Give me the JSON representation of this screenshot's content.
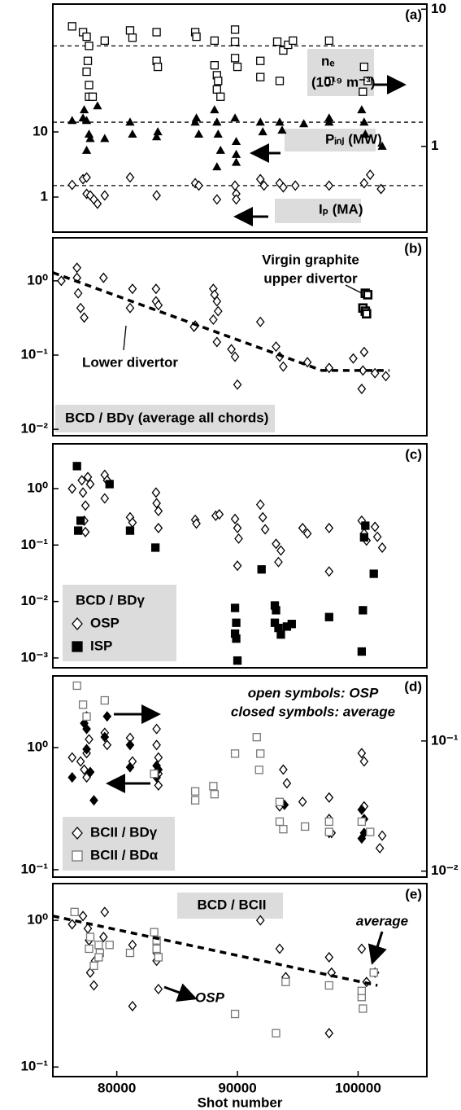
{
  "chart_data": [
    {
      "type": "scatter",
      "label": "(a)",
      "ylog": true,
      "xlim": [
        74700,
        105700
      ],
      "ylim": [
        0.29,
        917
      ],
      "yticks": [
        1,
        10
      ],
      "y2lim": [
        0.237,
        10.9
      ],
      "y2ticks": [
        1,
        10
      ],
      "reference_lines": [
        {
          "value": 5.4,
          "axis": "y2"
        },
        {
          "value": 14.1,
          "axis": "y"
        },
        {
          "value": 1.5,
          "axis": "y"
        }
      ],
      "annotations": [
        "nₑ",
        "(10¹⁹ m⁻³)",
        "Pᵢₙⱼ (MW)",
        "Iₚ (MA)"
      ],
      "series": [
        {
          "marker": "square",
          "filled": false,
          "color": "#000000",
          "axis": "y2",
          "x": [
            76300,
            77200,
            77500,
            77700,
            77600,
            77500,
            77700,
            77700,
            78000,
            79000,
            81100,
            81300,
            83300,
            83300,
            83400,
            86500,
            86600,
            88100,
            88100,
            88300,
            88400,
            88300,
            88600,
            89800,
            89800,
            89800,
            90000,
            91900,
            91900,
            93300,
            93500,
            93800,
            94200,
            94600,
            97600,
            97600,
            100500,
            100800,
            100400
          ],
          "values": [
            7.5,
            6.8,
            6.3,
            5.4,
            4.2,
            3.5,
            2.8,
            2.3,
            2.3,
            5.9,
            7.0,
            6.2,
            6.8,
            4.2,
            3.8,
            6.8,
            6.3,
            5.9,
            3.9,
            3.3,
            3.0,
            2.6,
            2.3,
            7.1,
            5.8,
            4.4,
            3.8,
            4.2,
            3.2,
            5.8,
            3.0,
            5.0,
            5.5,
            5.9,
            5.9,
            3.0,
            3.8,
            3.0,
            2.5
          ]
        },
        {
          "marker": "triangle",
          "filled": true,
          "color": "#000000",
          "axis": "y",
          "x": [
            76300,
            77200,
            77300,
            77500,
            77700,
            77800,
            77500,
            78400,
            79000,
            81100,
            81300,
            83300,
            83400,
            86500,
            86600,
            86800,
            88100,
            88300,
            88400,
            88600,
            88300,
            89800,
            89900,
            89900,
            89900,
            91900,
            92100,
            93500,
            93700,
            95500,
            97600,
            97600,
            100300,
            100500,
            100600,
            102000
          ],
          "values": [
            14.9,
            16.3,
            21.8,
            14.9,
            9.2,
            7.9,
            5.2,
            25,
            7.9,
            14.1,
            9.2,
            8.4,
            10,
            14.1,
            16.3,
            9.2,
            21.8,
            14.1,
            9.2,
            5.2,
            2.9,
            16.3,
            7.1,
            4.5,
            3.4,
            14.1,
            10,
            14.1,
            10.6,
            13.3,
            16.3,
            14.1,
            21.8,
            14.1,
            9.2,
            6
          ]
        },
        {
          "marker": "diamond",
          "filled": false,
          "color": "#000000",
          "axis": "y",
          "x": [
            76300,
            77200,
            77500,
            77500,
            77800,
            78100,
            78400,
            79000,
            81100,
            83300,
            86500,
            86800,
            88300,
            89800,
            89900,
            89900,
            91900,
            92200,
            93500,
            93800,
            94800,
            97600,
            101000,
            100500,
            101900
          ],
          "values": [
            1.54,
            1.88,
            2,
            1.12,
            1.06,
            0.92,
            0.79,
            1.06,
            2,
            1.06,
            1.63,
            1.5,
            0.92,
            1.5,
            1.12,
            0.92,
            1.88,
            1.5,
            1.63,
            1.41,
            1.5,
            1.5,
            2.2,
            1.63,
            1.33
          ]
        }
      ]
    },
    {
      "type": "scatter",
      "label": "(b)",
      "ylog": true,
      "xlim": [
        74700,
        105700
      ],
      "ylim": [
        0.0082,
        3.8
      ],
      "yticks": [
        {
          "value": 1,
          "label": "10⁰"
        },
        {
          "value": 0.1,
          "label": "10⁻¹"
        },
        {
          "value": 0.01,
          "label": "10⁻²"
        }
      ],
      "annotations": [
        "Virgin graphite",
        "upper divertor",
        "Lower divertor",
        "BCD / BDγ (average all chords)"
      ],
      "series": [
        {
          "marker": "diamond",
          "filled": false,
          "color": "#000000",
          "x": [
            75400,
            76700,
            76700,
            76800,
            77000,
            77300,
            78900,
            81300,
            81100,
            83250,
            83250,
            83450,
            86500,
            86400,
            88000,
            88100,
            88300,
            88400,
            88000,
            88300,
            89500,
            89800,
            90000,
            91900,
            93200,
            93500,
            93800,
            95800,
            97600,
            99600,
            100500,
            100400,
            100300,
            101400,
            102300
          ],
          "values": [
            1.0,
            1.5,
            1.1,
            0.68,
            0.43,
            0.32,
            1.1,
            0.78,
            0.43,
            0.78,
            0.53,
            0.47,
            0.25,
            0.24,
            0.78,
            0.65,
            0.53,
            0.39,
            0.3,
            0.15,
            0.12,
            0.095,
            0.04,
            0.28,
            0.13,
            0.095,
            0.07,
            0.08,
            0.067,
            0.09,
            0.11,
            0.062,
            0.035,
            0.057,
            0.052
          ]
        },
        {
          "marker": "square",
          "filled": false,
          "color": "#000000",
          "thick": true,
          "x": [
            100600,
            100800,
            100400,
            100600,
            100700
          ],
          "values": [
            0.68,
            0.65,
            0.43,
            0.39,
            0.36
          ]
        },
        {
          "line": true,
          "dashed": true,
          "color": "#000000",
          "x": [
            74700,
            97000,
            102600
          ],
          "values": [
            1.29,
            0.062,
            0.062
          ]
        }
      ]
    },
    {
      "type": "scatter",
      "label": "(c)",
      "ylog": true,
      "xlim": [
        74700,
        105700
      ],
      "ylim": [
        0.00067,
        6.2
      ],
      "yticks": [
        {
          "value": 1,
          "label": "10⁰"
        },
        {
          "value": 0.1,
          "label": "10⁻¹"
        },
        {
          "value": 0.01,
          "label": "10⁻²"
        },
        {
          "value": 0.001,
          "label": "10⁻³"
        }
      ],
      "legend_title": "BCD / BDγ",
      "legend": "lower left",
      "series": [
        {
          "name": "OSP",
          "marker": "diamond",
          "filled": false,
          "color": "#000000",
          "x": [
            76300,
            77100,
            77200,
            77400,
            77300,
            77600,
            77800,
            77400,
            79000,
            79200,
            79000,
            81100,
            81300,
            83250,
            83300,
            83450,
            83450,
            86500,
            86600,
            88200,
            88500,
            89800,
            90000,
            90100,
            90000,
            91900,
            92100,
            92300,
            93200,
            93400,
            93600,
            95400,
            95800,
            97600,
            97600,
            100300,
            100500,
            100700,
            101400,
            101600,
            102000
          ],
          "values": [
            1.0,
            1.4,
            0.85,
            0.5,
            0.27,
            1.6,
            1.2,
            0.17,
            1.75,
            1.4,
            0.67,
            0.31,
            0.25,
            0.85,
            0.55,
            0.4,
            0.2,
            0.28,
            0.24,
            0.33,
            0.35,
            0.29,
            0.2,
            0.13,
            0.043,
            0.52,
            0.31,
            0.19,
            0.105,
            0.05,
            0.08,
            0.2,
            0.16,
            0.2,
            0.034,
            0.27,
            0.16,
            0.12,
            0.21,
            0.14,
            0.09
          ]
        },
        {
          "name": "ISP",
          "marker": "square",
          "filled": true,
          "color": "#000000",
          "x": [
            76700,
            79400,
            77000,
            76800,
            81100,
            83200,
            89800,
            89900,
            90000,
            89900,
            89800,
            92000,
            93200,
            93100,
            93400,
            93600,
            94100,
            94500,
            93100,
            97600,
            100400,
            100300,
            101300,
            100500,
            100600
          ],
          "values": [
            2.5,
            1.2,
            0.27,
            0.18,
            0.18,
            0.09,
            0.0027,
            0.0022,
            0.0009,
            0.0042,
            0.0077,
            0.037,
            0.007,
            0.0042,
            0.0034,
            0.0026,
            0.0036,
            0.004,
            0.0085,
            0.0053,
            0.007,
            0.0013,
            0.031,
            0.137,
            0.22
          ]
        }
      ]
    },
    {
      "type": "scatter",
      "label": "(d)",
      "ylog": true,
      "xlim": [
        74700,
        105700
      ],
      "ylim": [
        0.087,
        3.86
      ],
      "yticks": [
        {
          "value": 1,
          "label": "10⁰"
        },
        {
          "value": 0.1,
          "label": "10⁻¹"
        }
      ],
      "y2lim": [
        0.009,
        0.316
      ],
      "y2ticks": [
        {
          "value": 0.1,
          "label": "10⁻¹"
        },
        {
          "value": 0.01,
          "label": "10⁻²"
        }
      ],
      "annotations": [
        "open symbols: OSP",
        "closed symbols: average"
      ],
      "legend": "lower left",
      "series": [
        {
          "name": "BCII / BDγ",
          "marker": "diamond",
          "filled": false,
          "color": "#000000",
          "axis": "y",
          "x": [
            76300,
            77000,
            77500,
            77500,
            77700,
            77500,
            77300,
            79000,
            79200,
            81100,
            81300,
            83300,
            83300,
            83450,
            83450,
            83450,
            93800,
            94100,
            93500,
            95400,
            97600,
            97600,
            97800,
            100300,
            100500,
            100500,
            102000,
            101800
          ],
          "values": [
            0.83,
            0.77,
            0.9,
            1.8,
            1.17,
            0.57,
            0.66,
            1.32,
            1.05,
            1.2,
            0.77,
            1.42,
            1.05,
            0.83,
            0.61,
            0.49,
            0.66,
            0.51,
            0.33,
            0.36,
            0.39,
            0.26,
            0.2,
            0.9,
            0.77,
            0.33,
            0.19,
            0.15
          ]
        },
        {
          "marker": "diamond",
          "filled": true,
          "color": "#000000",
          "axis": "y",
          "x": [
            76300,
            77500,
            77500,
            77300,
            77800,
            78100,
            79000,
            79200,
            81100,
            81100,
            83450,
            83300,
            83300,
            93900,
            97600,
            100300,
            100500,
            100500,
            100300
          ],
          "values": [
            0.57,
            1.42,
            0.97,
            1.58,
            0.63,
            0.37,
            1.22,
            1.8,
            1.05,
            0.69,
            0.66,
            0.71,
            0.57,
            0.34,
            0.2,
            0.31,
            0.26,
            0.2,
            0.18
          ]
        },
        {
          "name": "BCII / BDα",
          "marker": "square",
          "filled": false,
          "color": "#777777",
          "axis": "y2",
          "x": [
            76700,
            77200,
            77500,
            79000,
            83100,
            86500,
            86500,
            88000,
            88100,
            89800,
            91600,
            91900,
            91800,
            93500,
            93500,
            93800,
            95600,
            97600,
            97600,
            100300,
            101000
          ],
          "values": [
            0.266,
            0.19,
            0.154,
            0.205,
            0.056,
            0.041,
            0.035,
            0.045,
            0.039,
            0.08,
            0.107,
            0.08,
            0.06,
            0.034,
            0.024,
            0.021,
            0.022,
            0.02,
            0.024,
            0.024,
            0.02
          ]
        }
      ]
    },
    {
      "type": "scatter",
      "label": "(e)",
      "ylog": true,
      "xlim": [
        74700,
        105700
      ],
      "ylim": [
        0.086,
        1.78
      ],
      "yticks": [
        {
          "value": 1,
          "label": "10⁰"
        },
        {
          "value": 0.1,
          "label": "10⁻¹"
        }
      ],
      "xticks": [
        80000,
        90000,
        100000
      ],
      "xlabel": "Shot number",
      "annotations": [
        "BCD / BCII",
        "average",
        "OSP"
      ],
      "series": [
        {
          "marker": "diamond",
          "filled": false,
          "color": "#000000",
          "x": [
            76300,
            77200,
            77600,
            77700,
            77800,
            78100,
            78200,
            78900,
            79000,
            81300,
            81300,
            83300,
            83300,
            83450,
            91900,
            93500,
            94000,
            97600,
            97800,
            97600,
            100300,
            100700,
            101400
          ],
          "values": [
            0.94,
            1.07,
            0.88,
            0.73,
            0.44,
            0.36,
            0.53,
            0.77,
            1.14,
            0.68,
            0.26,
            0.6,
            0.53,
            0.34,
            1.0,
            0.64,
            0.41,
            0.56,
            0.44,
            0.17,
            0.64,
            0.38,
            0.44
          ]
        },
        {
          "marker": "square",
          "filled": false,
          "color": "#777777",
          "x": [
            76500,
            77700,
            77800,
            78100,
            78500,
            78600,
            78500,
            79400,
            81100,
            83100,
            83300,
            83300,
            83450,
            89800,
            93200,
            94000,
            97600,
            100300,
            100400,
            101300,
            100300
          ],
          "values": [
            1.14,
            0.64,
            0.77,
            0.49,
            0.68,
            0.6,
            0.56,
            0.68,
            0.6,
            0.83,
            0.73,
            0.64,
            0.56,
            0.23,
            0.17,
            0.38,
            0.36,
            0.3,
            0.25,
            0.44,
            0.33
          ]
        },
        {
          "line": true,
          "dashed": true,
          "color": "#000000",
          "x": [
            74700,
            101600
          ],
          "values": [
            1.07,
            0.36
          ]
        }
      ]
    }
  ]
}
